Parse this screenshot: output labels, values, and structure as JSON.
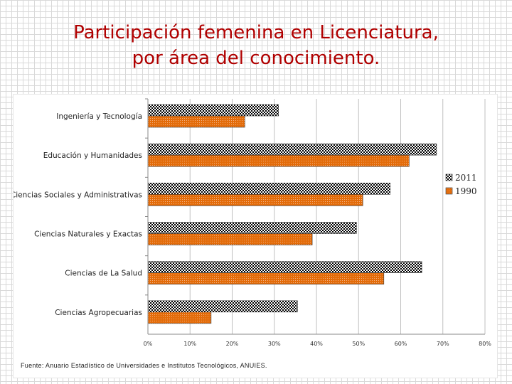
{
  "slide": {
    "title_line1": "Participación femenina en Licenciatura,",
    "title_line2": "por área del conocimiento."
  },
  "source": "Fuente: Anuario Estadístico de Universidades e Institutos Tecnológicos, ANUIES.",
  "chart_data": {
    "type": "bar",
    "orientation": "horizontal",
    "title": "Participación femenina en Licenciatura, por área del conocimiento.",
    "xlabel": "",
    "ylabel": "",
    "categories": [
      "Ingeniería y Tecnología",
      "Educación y Humanidades",
      "Ciencias Sociales y Administrativas",
      "Ciencias Naturales y Exactas",
      "Ciencias de La Salud",
      "Ciencias Agropecuarias"
    ],
    "series": [
      {
        "name": "2011",
        "values": [
          31,
          68.5,
          57.5,
          49.5,
          65,
          35.5
        ],
        "color": "#000000",
        "pattern": "checker"
      },
      {
        "name": "1990",
        "values": [
          23,
          62,
          51,
          39,
          56,
          15
        ],
        "color": "#e36c0a",
        "pattern": "dots"
      }
    ],
    "xlim": [
      0,
      80
    ],
    "xticks": [
      "0%",
      "10%",
      "20%",
      "30%",
      "40%",
      "50%",
      "60%",
      "70%",
      "80%"
    ],
    "gridlines": true,
    "legend": {
      "position": "right",
      "entries": [
        "2011",
        "1990"
      ]
    }
  }
}
